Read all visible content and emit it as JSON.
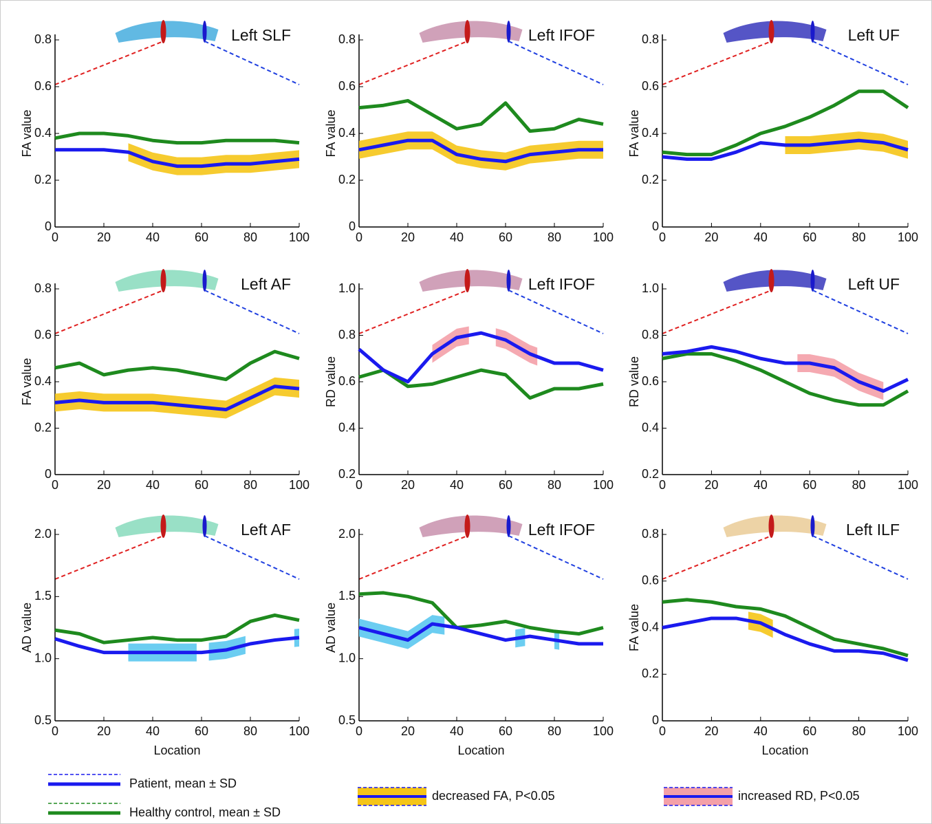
{
  "chart_data": [
    {
      "type": "line",
      "title": "Left SLF",
      "y_label": "FA value",
      "tract_color": "#3aa7dc",
      "xlim": [
        0,
        100
      ],
      "xticks": [
        0,
        20,
        40,
        60,
        80,
        100
      ],
      "ylim": [
        0,
        0.8
      ],
      "yticks": [
        0,
        0.2,
        0.4,
        0.6,
        0.8
      ],
      "x": [
        0,
        10,
        20,
        30,
        40,
        50,
        60,
        70,
        80,
        90,
        100
      ],
      "series": [
        {
          "color": "#1a1aee",
          "values": [
            0.33,
            0.33,
            0.33,
            0.32,
            0.28,
            0.26,
            0.26,
            0.27,
            0.27,
            0.28,
            0.29
          ]
        },
        {
          "color": "#1e8a1e",
          "values": [
            0.38,
            0.4,
            0.4,
            0.39,
            0.37,
            0.36,
            0.36,
            0.37,
            0.37,
            0.37,
            0.36
          ]
        }
      ],
      "highlight": {
        "color": "#f5c518",
        "ranges": [
          [
            30,
            100
          ]
        ]
      }
    },
    {
      "type": "line",
      "title": "Left IFOF",
      "y_label": "FA value",
      "tract_color": "#c48aa8",
      "xlim": [
        0,
        100
      ],
      "xticks": [
        0,
        20,
        40,
        60,
        80,
        100
      ],
      "ylim": [
        0,
        0.8
      ],
      "yticks": [
        0,
        0.2,
        0.4,
        0.6,
        0.8
      ],
      "x": [
        0,
        10,
        20,
        30,
        40,
        50,
        60,
        70,
        80,
        90,
        100
      ],
      "series": [
        {
          "color": "#1a1aee",
          "values": [
            0.33,
            0.35,
            0.37,
            0.37,
            0.31,
            0.29,
            0.28,
            0.31,
            0.32,
            0.33,
            0.33
          ]
        },
        {
          "color": "#1e8a1e",
          "values": [
            0.51,
            0.52,
            0.54,
            0.48,
            0.42,
            0.44,
            0.53,
            0.41,
            0.42,
            0.46,
            0.44
          ]
        }
      ],
      "highlight": {
        "color": "#f5c518",
        "ranges": [
          [
            0,
            100
          ]
        ]
      }
    },
    {
      "type": "line",
      "title": "Left UF",
      "y_label": "FA value",
      "tract_color": "#2a2ab8",
      "xlim": [
        0,
        100
      ],
      "xticks": [
        0,
        20,
        40,
        60,
        80,
        100
      ],
      "ylim": [
        0,
        0.8
      ],
      "yticks": [
        0,
        0.2,
        0.4,
        0.6,
        0.8
      ],
      "x": [
        0,
        10,
        20,
        30,
        40,
        50,
        60,
        70,
        80,
        90,
        100
      ],
      "series": [
        {
          "color": "#1a1aee",
          "values": [
            0.3,
            0.29,
            0.29,
            0.32,
            0.36,
            0.35,
            0.35,
            0.36,
            0.37,
            0.36,
            0.33
          ]
        },
        {
          "color": "#1e8a1e",
          "values": [
            0.32,
            0.31,
            0.31,
            0.35,
            0.4,
            0.43,
            0.47,
            0.52,
            0.58,
            0.58,
            0.51
          ]
        }
      ],
      "highlight": {
        "color": "#f5c518",
        "ranges": [
          [
            50,
            100
          ]
        ]
      }
    },
    {
      "type": "line",
      "title": "Left AF",
      "y_label": "FA value",
      "tract_color": "#7fd8b8",
      "xlim": [
        0,
        100
      ],
      "xticks": [
        0,
        20,
        40,
        60,
        80,
        100
      ],
      "ylim": [
        0,
        0.8
      ],
      "yticks": [
        0,
        0.2,
        0.4,
        0.6,
        0.8
      ],
      "x": [
        0,
        10,
        20,
        30,
        40,
        50,
        60,
        70,
        80,
        90,
        100
      ],
      "series": [
        {
          "color": "#1a1aee",
          "values": [
            0.31,
            0.32,
            0.31,
            0.31,
            0.31,
            0.3,
            0.29,
            0.28,
            0.33,
            0.38,
            0.37
          ]
        },
        {
          "color": "#1e8a1e",
          "values": [
            0.46,
            0.48,
            0.43,
            0.45,
            0.46,
            0.45,
            0.43,
            0.41,
            0.48,
            0.53,
            0.5
          ]
        }
      ],
      "highlight": {
        "color": "#f5c518",
        "ranges": [
          [
            0,
            100
          ]
        ]
      }
    },
    {
      "type": "line",
      "title": "Left IFOF",
      "y_label": "RD value",
      "tract_color": "#c48aa8",
      "xlim": [
        0,
        100
      ],
      "xticks": [
        0,
        20,
        40,
        60,
        80,
        100
      ],
      "ylim": [
        0.2,
        1.0
      ],
      "yticks": [
        0.2,
        0.4,
        0.6,
        0.8,
        {
          "value": 1,
          "label": "1.0"
        }
      ],
      "x": [
        0,
        10,
        20,
        30,
        40,
        50,
        60,
        70,
        80,
        90,
        100
      ],
      "series": [
        {
          "color": "#1a1aee",
          "values": [
            0.74,
            0.65,
            0.6,
            0.72,
            0.79,
            0.81,
            0.78,
            0.72,
            0.68,
            0.68,
            0.65
          ]
        },
        {
          "color": "#1e8a1e",
          "values": [
            0.62,
            0.65,
            0.58,
            0.59,
            0.62,
            0.65,
            0.63,
            0.53,
            0.57,
            0.57,
            0.59
          ]
        }
      ],
      "highlight": {
        "color": "#f4a0a8",
        "ranges": [
          [
            30,
            45
          ],
          [
            56,
            73
          ]
        ]
      }
    },
    {
      "type": "line",
      "title": "Left UF",
      "y_label": "RD value",
      "tract_color": "#2a2ab8",
      "xlim": [
        0,
        100
      ],
      "xticks": [
        0,
        20,
        40,
        60,
        80,
        100
      ],
      "ylim": [
        0.2,
        1.0
      ],
      "yticks": [
        0.2,
        0.4,
        0.6,
        0.8,
        {
          "value": 1,
          "label": "1.0"
        }
      ],
      "x": [
        0,
        10,
        20,
        30,
        40,
        50,
        60,
        70,
        80,
        90,
        100
      ],
      "series": [
        {
          "color": "#1a1aee",
          "values": [
            0.72,
            0.73,
            0.75,
            0.73,
            0.7,
            0.68,
            0.68,
            0.66,
            0.6,
            0.56,
            0.61
          ]
        },
        {
          "color": "#1e8a1e",
          "values": [
            0.7,
            0.72,
            0.72,
            0.69,
            0.65,
            0.6,
            0.55,
            0.52,
            0.5,
            0.5,
            0.56
          ]
        }
      ],
      "highlight": {
        "color": "#f4a0a8",
        "ranges": [
          [
            55,
            90
          ]
        ]
      }
    },
    {
      "type": "line",
      "title": "Left AF",
      "y_label": "AD value",
      "x_label": "Location",
      "tract_color": "#7fd8b8",
      "xlim": [
        0,
        100
      ],
      "xticks": [
        0,
        20,
        40,
        60,
        80,
        100
      ],
      "ylim": [
        0.5,
        2.0
      ],
      "yticks": [
        0.5,
        {
          "value": 1,
          "label": "1.0"
        },
        1.5,
        {
          "value": 2,
          "label": "2.0"
        }
      ],
      "x": [
        0,
        10,
        20,
        30,
        40,
        50,
        60,
        70,
        80,
        90,
        100
      ],
      "series": [
        {
          "color": "#1a1aee",
          "values": [
            1.16,
            1.1,
            1.05,
            1.05,
            1.05,
            1.05,
            1.05,
            1.07,
            1.12,
            1.15,
            1.17
          ]
        },
        {
          "color": "#1e8a1e",
          "values": [
            1.23,
            1.2,
            1.13,
            1.15,
            1.17,
            1.15,
            1.15,
            1.18,
            1.3,
            1.35,
            1.31
          ]
        }
      ],
      "highlight": {
        "color": "#5bc8f0",
        "ranges": [
          [
            30,
            58
          ],
          [
            63,
            78
          ],
          [
            98,
            100
          ]
        ]
      }
    },
    {
      "type": "line",
      "title": "Left IFOF",
      "y_label": "AD value",
      "x_label": "Location",
      "tract_color": "#c48aa8",
      "xlim": [
        0,
        100
      ],
      "xticks": [
        0,
        20,
        40,
        60,
        80,
        100
      ],
      "ylim": [
        0.5,
        2.0
      ],
      "yticks": [
        0.5,
        {
          "value": 1,
          "label": "1.0"
        },
        1.5,
        {
          "value": 2,
          "label": "2.0"
        }
      ],
      "x": [
        0,
        10,
        20,
        30,
        40,
        50,
        60,
        70,
        80,
        90,
        100
      ],
      "series": [
        {
          "color": "#1a1aee",
          "values": [
            1.25,
            1.2,
            1.15,
            1.28,
            1.25,
            1.2,
            1.15,
            1.18,
            1.15,
            1.12,
            1.12
          ]
        },
        {
          "color": "#1e8a1e",
          "values": [
            1.52,
            1.53,
            1.5,
            1.45,
            1.25,
            1.27,
            1.3,
            1.25,
            1.22,
            1.2,
            1.25
          ]
        }
      ],
      "highlight": {
        "color": "#5bc8f0",
        "ranges": [
          [
            0,
            35
          ],
          [
            64,
            68
          ],
          [
            80,
            82
          ]
        ]
      }
    },
    {
      "type": "line",
      "title": "Left ILF",
      "y_label": "FA value",
      "x_label": "Location",
      "tract_color": "#e8c890",
      "xlim": [
        0,
        100
      ],
      "xticks": [
        0,
        20,
        40,
        60,
        80,
        100
      ],
      "ylim": [
        0,
        0.8
      ],
      "yticks": [
        0,
        0.2,
        0.4,
        0.6,
        0.8
      ],
      "x": [
        0,
        10,
        20,
        30,
        40,
        50,
        60,
        70,
        80,
        90,
        100
      ],
      "series": [
        {
          "color": "#1a1aee",
          "values": [
            0.4,
            0.42,
            0.44,
            0.44,
            0.42,
            0.37,
            0.33,
            0.3,
            0.3,
            0.29,
            0.26
          ]
        },
        {
          "color": "#1e8a1e",
          "values": [
            0.51,
            0.52,
            0.51,
            0.49,
            0.48,
            0.45,
            0.4,
            0.35,
            0.33,
            0.31,
            0.28
          ]
        }
      ],
      "highlight": {
        "color": "#f5c518",
        "ranges": [
          [
            35,
            45
          ]
        ]
      }
    }
  ],
  "legend": [
    {
      "label": "Patient, mean ± SD",
      "color": "#1a1aee",
      "style": "line"
    },
    {
      "label": "Healthy control, mean ± SD",
      "color": "#1e8a1e",
      "style": "line"
    },
    {
      "label": "decreased FA, P<0.05",
      "color": "#f5c518",
      "style": "band"
    },
    {
      "label": "increased RD, P<0.05",
      "color": "#f4a0a8",
      "style": "band"
    }
  ]
}
